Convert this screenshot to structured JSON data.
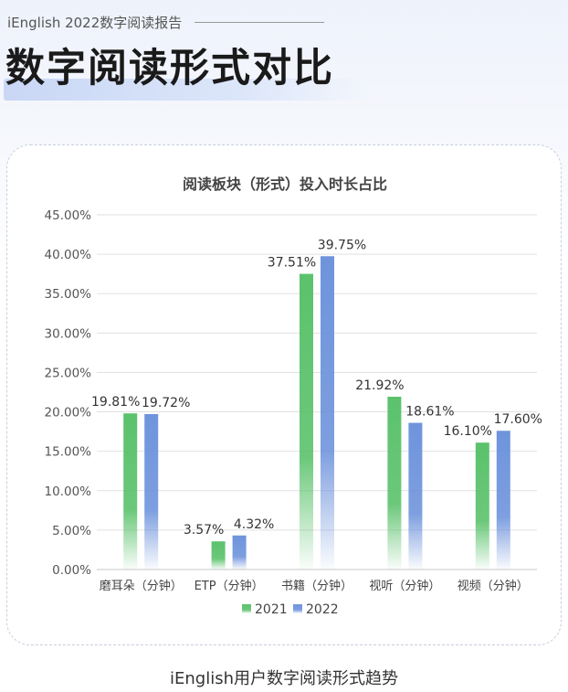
{
  "header": {
    "subtitle": "iEnglish 2022数字阅读报告",
    "title": "数字阅读形式对比"
  },
  "caption": "iEnglish用户数字阅读形式趋势",
  "chart_data": {
    "type": "bar",
    "title": "阅读板块（形式）投入时长占比",
    "categories": [
      "磨耳朵（分钟）",
      "ETP（分钟）",
      "书籍（分钟）",
      "视听（分钟）",
      "视频（分钟）"
    ],
    "series": [
      {
        "name": "2021",
        "values": [
          19.81,
          3.57,
          37.51,
          21.92,
          16.1
        ],
        "labels": [
          "19.81%",
          "3.57%",
          "37.51%",
          "21.92%",
          "16.10%"
        ],
        "color": "#5bc26c"
      },
      {
        "name": "2022",
        "values": [
          19.72,
          4.32,
          39.75,
          18.61,
          17.6
        ],
        "labels": [
          "19.72%",
          "4.32%",
          "39.75%",
          "18.61%",
          "17.60%"
        ],
        "color": "#6f94dc"
      }
    ],
    "yticks": [
      "0.00%",
      "5.00%",
      "10.00%",
      "15.00%",
      "20.00%",
      "25.00%",
      "30.00%",
      "35.00%",
      "40.00%",
      "45.00%"
    ],
    "ylim": [
      0,
      45
    ],
    "grid": true,
    "legend_position": "bottom"
  }
}
